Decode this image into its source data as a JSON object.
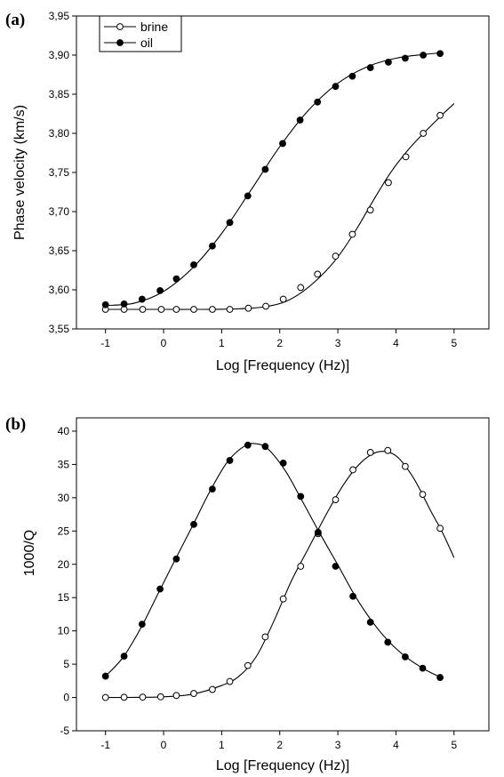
{
  "legend": {
    "brine": "brine",
    "oil": "oil"
  },
  "chart_data": [
    {
      "type": "line",
      "panel_label": "(a)",
      "xlabel": "Log [Frequency (Hz)]",
      "ylabel": "Phase velocity (km/s)",
      "xlim": [
        -1.5,
        5.6
      ],
      "ylim": [
        3.55,
        3.95
      ],
      "xticks": [
        -1,
        0,
        1,
        2,
        3,
        4,
        5
      ],
      "xtick_labels": [
        "-1",
        "0",
        "1",
        "2",
        "3",
        "4",
        "5"
      ],
      "yticks": [
        3.55,
        3.6,
        3.65,
        3.7,
        3.75,
        3.8,
        3.85,
        3.9,
        3.95
      ],
      "ytick_labels": [
        "3,55",
        "3,60",
        "3,65",
        "3,70",
        "3,75",
        "3,80",
        "3,85",
        "3,90",
        "3,95"
      ],
      "grid": false,
      "legend_position": "top-left",
      "series": [
        {
          "name": "brine",
          "marker": "open-circle",
          "curve": [
            [
              -1,
              3.575
            ],
            [
              -0.5,
              3.575
            ],
            [
              0,
              3.575
            ],
            [
              0.5,
              3.575
            ],
            [
              1,
              3.5752
            ],
            [
              1.5,
              3.5765
            ],
            [
              1.8,
              3.579
            ],
            [
              2.1,
              3.585
            ],
            [
              2.4,
              3.598
            ],
            [
              2.7,
              3.617
            ],
            [
              3,
              3.642
            ],
            [
              3.3,
              3.675
            ],
            [
              3.6,
              3.713
            ],
            [
              3.9,
              3.749
            ],
            [
              4.2,
              3.778
            ],
            [
              4.5,
              3.802
            ],
            [
              4.8,
              3.824
            ],
            [
              5,
              3.838
            ]
          ],
          "x": [
            -1,
            -0.68,
            -0.36,
            -0.04,
            0.22,
            0.52,
            0.84,
            1.14,
            1.46,
            1.76,
            2.06,
            2.36,
            2.65,
            2.96,
            3.25,
            3.56,
            3.87,
            4.17,
            4.47,
            4.76
          ],
          "y": [
            3.575,
            3.575,
            3.575,
            3.575,
            3.575,
            3.575,
            3.575,
            3.575,
            3.5765,
            3.579,
            3.588,
            3.603,
            3.62,
            3.643,
            3.671,
            3.702,
            3.737,
            3.77,
            3.8,
            3.823
          ]
        },
        {
          "name": "oil",
          "marker": "filled-circle",
          "curve": [
            [
              -1,
              3.58
            ],
            [
              -0.5,
              3.583
            ],
            [
              0,
              3.598
            ],
            [
              0.5,
              3.628
            ],
            [
              1,
              3.672
            ],
            [
              1.5,
              3.727
            ],
            [
              2,
              3.783
            ],
            [
              2.5,
              3.83
            ],
            [
              3,
              3.864
            ],
            [
              3.5,
              3.885
            ],
            [
              4,
              3.896
            ],
            [
              4.5,
              3.901
            ],
            [
              4.8,
              3.903
            ]
          ],
          "x": [
            -1,
            -0.68,
            -0.37,
            -0.06,
            0.22,
            0.52,
            0.84,
            1.14,
            1.45,
            1.75,
            2.05,
            2.35,
            2.65,
            2.96,
            3.25,
            3.56,
            3.87,
            4.16,
            4.47,
            4.76
          ],
          "y": [
            3.581,
            3.582,
            3.588,
            3.599,
            3.614,
            3.632,
            3.656,
            3.686,
            3.72,
            3.754,
            3.787,
            3.817,
            3.84,
            3.86,
            3.873,
            3.884,
            3.891,
            3.896,
            3.9,
            3.902
          ]
        }
      ]
    },
    {
      "type": "line",
      "panel_label": "(b)",
      "xlabel": "Log [Frequency (Hz)]",
      "ylabel": "1000/Q",
      "xlim": [
        -1.5,
        5.6
      ],
      "ylim": [
        -5,
        42
      ],
      "xticks": [
        -1,
        0,
        1,
        2,
        3,
        4,
        5
      ],
      "xtick_labels": [
        "-1",
        "0",
        "1",
        "2",
        "3",
        "4",
        "5"
      ],
      "yticks": [
        -5,
        0,
        5,
        10,
        15,
        20,
        25,
        30,
        35,
        40
      ],
      "ytick_labels": [
        "-5",
        "0",
        "5",
        "10",
        "15",
        "20",
        "25",
        "30",
        "35",
        "40"
      ],
      "grid": false,
      "series": [
        {
          "name": "brine",
          "marker": "open-circle",
          "curve": [
            [
              -1,
              0
            ],
            [
              -0.5,
              0.02
            ],
            [
              0,
              0.1
            ],
            [
              0.5,
              0.5
            ],
            [
              1,
              1.8
            ],
            [
              1.3,
              3.2
            ],
            [
              1.6,
              6.2
            ],
            [
              1.9,
              11.5
            ],
            [
              2.2,
              17.5
            ],
            [
              2.5,
              22.5
            ],
            [
              2.8,
              27.5
            ],
            [
              3.1,
              32
            ],
            [
              3.4,
              35.3
            ],
            [
              3.7,
              36.9
            ],
            [
              4,
              36.3
            ],
            [
              4.3,
              33
            ],
            [
              4.6,
              28
            ],
            [
              4.8,
              24.8
            ],
            [
              5,
              21
            ]
          ],
          "x": [
            -1,
            -0.68,
            -0.36,
            -0.05,
            0.22,
            0.52,
            0.84,
            1.14,
            1.45,
            1.75,
            2.06,
            2.36,
            2.66,
            2.96,
            3.26,
            3.56,
            3.86,
            4.16,
            4.46,
            4.76
          ],
          "y": [
            0,
            0.03,
            0.05,
            0.1,
            0.3,
            0.6,
            1.2,
            2.4,
            4.8,
            9.1,
            14.8,
            19.7,
            24.6,
            29.7,
            34.2,
            36.8,
            37.1,
            34.7,
            30.5,
            25.4
          ]
        },
        {
          "name": "oil",
          "marker": "filled-circle",
          "curve": [
            [
              -1,
              3.2
            ],
            [
              -0.7,
              6
            ],
            [
              -0.4,
              10.3
            ],
            [
              -0.1,
              15.5
            ],
            [
              0.2,
              20.7
            ],
            [
              0.5,
              25.8
            ],
            [
              0.8,
              31
            ],
            [
              1.1,
              35.4
            ],
            [
              1.4,
              37.8
            ],
            [
              1.6,
              38.1
            ],
            [
              1.8,
              37.3
            ],
            [
              2.1,
              34
            ],
            [
              2.4,
              29.3
            ],
            [
              2.7,
              24.5
            ],
            [
              3,
              19.9
            ],
            [
              3.3,
              15.2
            ],
            [
              3.6,
              11.3
            ],
            [
              3.9,
              8.2
            ],
            [
              4.2,
              5.9
            ],
            [
              4.5,
              4.2
            ],
            [
              4.8,
              2.9
            ]
          ],
          "x": [
            -1,
            -0.68,
            -0.37,
            -0.06,
            0.22,
            0.52,
            0.84,
            1.14,
            1.45,
            1.75,
            2.06,
            2.36,
            2.66,
            2.96,
            3.26,
            3.56,
            3.86,
            4.16,
            4.46,
            4.76
          ],
          "y": [
            3.2,
            6.2,
            11,
            16.3,
            20.8,
            26,
            31.3,
            35.6,
            37.9,
            37.7,
            35.2,
            30.2,
            24.8,
            19.7,
            15.2,
            11.3,
            8.3,
            6.1,
            4.4,
            3
          ]
        }
      ]
    }
  ]
}
